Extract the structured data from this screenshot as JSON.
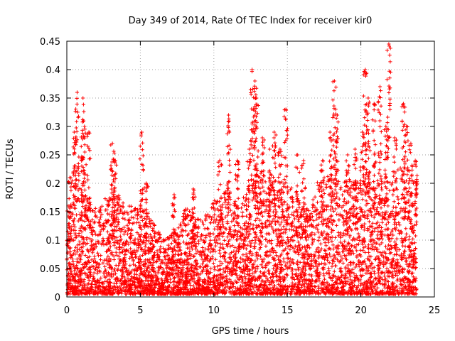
{
  "chart_data": {
    "type": "scatter",
    "title": "Day 349 of 2014, Rate Of TEC Index for receiver kir0",
    "xlabel": "GPS time / hours",
    "ylabel": "ROTI / TECUs",
    "xlim": [
      0,
      25
    ],
    "ylim": [
      0,
      0.45
    ],
    "xticks": [
      "0",
      "5",
      "10",
      "15",
      "20",
      "25"
    ],
    "yticks": [
      "0",
      "0.05",
      "0.1",
      "0.15",
      "0.2",
      "0.25",
      "0.3",
      "0.35",
      "0.4",
      "0.45"
    ],
    "grid": true,
    "marker": "plus",
    "color": "#ff0000",
    "envelope": {
      "hours": [
        0,
        0.5,
        1.0,
        1.5,
        2,
        2.5,
        3,
        3.5,
        4,
        4.5,
        5,
        5.5,
        6,
        6.5,
        7,
        7.5,
        8,
        8.5,
        9,
        9.5,
        10,
        10.5,
        11,
        11.5,
        12,
        12.5,
        13,
        13.5,
        14,
        14.5,
        15,
        15.5,
        16,
        16.5,
        17,
        17.5,
        18,
        18.5,
        19,
        19.5,
        20,
        20.5,
        21,
        21.5,
        22,
        22.5,
        23,
        23.5,
        23.8
      ],
      "typical_max": [
        0.15,
        0.2,
        0.2,
        0.16,
        0.15,
        0.16,
        0.2,
        0.18,
        0.15,
        0.16,
        0.15,
        0.15,
        0.12,
        0.1,
        0.1,
        0.12,
        0.15,
        0.15,
        0.13,
        0.14,
        0.17,
        0.17,
        0.2,
        0.16,
        0.17,
        0.2,
        0.22,
        0.2,
        0.2,
        0.2,
        0.2,
        0.18,
        0.16,
        0.15,
        0.2,
        0.2,
        0.22,
        0.2,
        0.22,
        0.2,
        0.2,
        0.22,
        0.2,
        0.22,
        0.2,
        0.22,
        0.24,
        0.2,
        0.2
      ]
    },
    "spikes": [
      {
        "x": 0.2,
        "y": 0.21
      },
      {
        "x": 0.5,
        "y": 0.29
      },
      {
        "x": 0.7,
        "y": 0.36
      },
      {
        "x": 1.1,
        "y": 0.35
      },
      {
        "x": 1.2,
        "y": 0.3
      },
      {
        "x": 1.5,
        "y": 0.29
      },
      {
        "x": 3.1,
        "y": 0.27
      },
      {
        "x": 3.3,
        "y": 0.24
      },
      {
        "x": 5.1,
        "y": 0.29
      },
      {
        "x": 5.4,
        "y": 0.2
      },
      {
        "x": 7.3,
        "y": 0.18
      },
      {
        "x": 8.6,
        "y": 0.19
      },
      {
        "x": 10.4,
        "y": 0.24
      },
      {
        "x": 11.0,
        "y": 0.32
      },
      {
        "x": 11.6,
        "y": 0.24
      },
      {
        "x": 12.4,
        "y": 0.26
      },
      {
        "x": 12.6,
        "y": 0.4
      },
      {
        "x": 12.8,
        "y": 0.38
      },
      {
        "x": 12.9,
        "y": 0.35
      },
      {
        "x": 13.3,
        "y": 0.28
      },
      {
        "x": 13.8,
        "y": 0.26
      },
      {
        "x": 14.1,
        "y": 0.29
      },
      {
        "x": 14.5,
        "y": 0.26
      },
      {
        "x": 14.9,
        "y": 0.33
      },
      {
        "x": 15.7,
        "y": 0.25
      },
      {
        "x": 16.1,
        "y": 0.24
      },
      {
        "x": 17.4,
        "y": 0.24
      },
      {
        "x": 17.9,
        "y": 0.29
      },
      {
        "x": 18.2,
        "y": 0.38
      },
      {
        "x": 18.4,
        "y": 0.32
      },
      {
        "x": 19.1,
        "y": 0.25
      },
      {
        "x": 19.6,
        "y": 0.26
      },
      {
        "x": 20.1,
        "y": 0.29
      },
      {
        "x": 20.3,
        "y": 0.4
      },
      {
        "x": 20.5,
        "y": 0.35
      },
      {
        "x": 20.9,
        "y": 0.34
      },
      {
        "x": 21.3,
        "y": 0.37
      },
      {
        "x": 21.7,
        "y": 0.3
      },
      {
        "x": 21.9,
        "y": 0.445
      },
      {
        "x": 22.3,
        "y": 0.28
      },
      {
        "x": 22.9,
        "y": 0.34
      },
      {
        "x": 23.1,
        "y": 0.3
      },
      {
        "x": 23.4,
        "y": 0.27
      },
      {
        "x": 23.7,
        "y": 0.24
      }
    ]
  }
}
